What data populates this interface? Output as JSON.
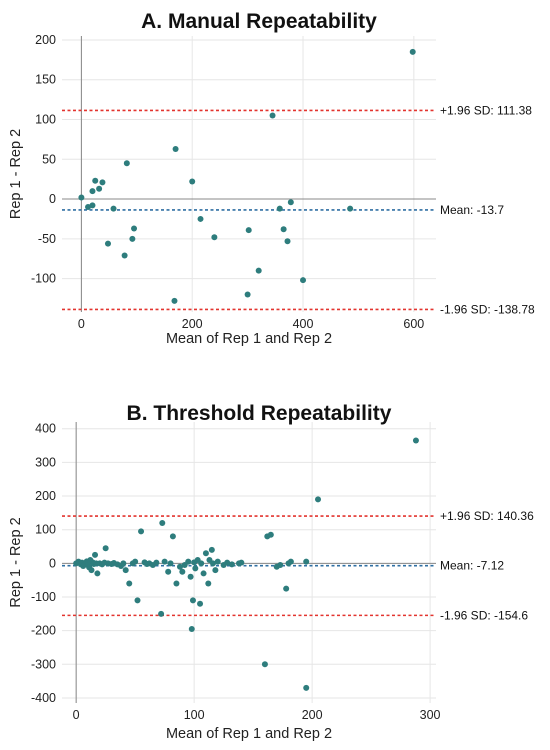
{
  "chart_data": [
    {
      "type": "scatter",
      "title": "A. Manual Repeatability",
      "xlabel": "Mean of Rep 1 and Rep 2",
      "ylabel": "Rep 1 - Rep 2",
      "xlim": [
        -35,
        640
      ],
      "ylim": [
        -142,
        205
      ],
      "xticks": [
        0,
        200,
        400,
        600
      ],
      "yticks": [
        -100,
        -50,
        0,
        50,
        100,
        150,
        200
      ],
      "grid": true,
      "point_color": "#2e7d7d",
      "mean_line": {
        "value": -13.7,
        "label": "Mean: -13.7",
        "color": "#2f6fa3"
      },
      "upper_loa": {
        "value": 111.38,
        "label": "+1.96 SD: 111.38",
        "color": "#e3342f"
      },
      "lower_loa": {
        "value": -138.78,
        "label": "-1.96 SD: -138.78",
        "color": "#e3342f"
      },
      "points": [
        [
          0,
          2
        ],
        [
          12,
          -10
        ],
        [
          20,
          10
        ],
        [
          20,
          -8
        ],
        [
          25,
          23
        ],
        [
          32,
          13
        ],
        [
          38,
          21
        ],
        [
          48,
          -56
        ],
        [
          58,
          -12
        ],
        [
          78,
          -71
        ],
        [
          82,
          45
        ],
        [
          92,
          -50
        ],
        [
          95,
          -37
        ],
        [
          168,
          -128
        ],
        [
          170,
          63
        ],
        [
          200,
          22
        ],
        [
          215,
          -25
        ],
        [
          240,
          -48
        ],
        [
          300,
          -120
        ],
        [
          302,
          -39
        ],
        [
          320,
          -90
        ],
        [
          345,
          105
        ],
        [
          358,
          -12
        ],
        [
          365,
          -38
        ],
        [
          372,
          -53
        ],
        [
          378,
          -4
        ],
        [
          400,
          -102
        ],
        [
          485,
          -12
        ],
        [
          598,
          185
        ]
      ]
    },
    {
      "type": "scatter",
      "title": "B. Threshold Repeatability",
      "xlabel": "Mean of Rep 1 and Rep 2",
      "ylabel": "Rep 1 - Rep 2",
      "xlim": [
        -12,
        305
      ],
      "ylim": [
        -415,
        420
      ],
      "xticks": [
        0,
        100,
        200,
        300
      ],
      "yticks": [
        -400,
        -300,
        -200,
        -100,
        0,
        100,
        200,
        300,
        400
      ],
      "grid": true,
      "point_color": "#2e7d7d",
      "mean_line": {
        "value": -7.12,
        "label": "Mean: -7.12",
        "color": "#2f6fa3"
      },
      "upper_loa": {
        "value": 140.36,
        "label": "+1.96 SD: 140.36",
        "color": "#e3342f"
      },
      "lower_loa": {
        "value": -154.6,
        "label": "-1.96 SD: -154.6",
        "color": "#e3342f"
      },
      "points": [
        [
          0,
          0
        ],
        [
          2,
          5
        ],
        [
          4,
          -3
        ],
        [
          5,
          2
        ],
        [
          6,
          -8
        ],
        [
          8,
          0
        ],
        [
          9,
          6
        ],
        [
          10,
          -5
        ],
        [
          11,
          -12
        ],
        [
          12,
          10
        ],
        [
          13,
          -20
        ],
        [
          14,
          3
        ],
        [
          15,
          -2
        ],
        [
          16,
          25
        ],
        [
          17,
          0
        ],
        [
          18,
          -30
        ],
        [
          20,
          0
        ],
        [
          22,
          -3
        ],
        [
          24,
          2
        ],
        [
          25,
          45
        ],
        [
          27,
          0
        ],
        [
          30,
          -2
        ],
        [
          32,
          1
        ],
        [
          35,
          -3
        ],
        [
          38,
          -8
        ],
        [
          40,
          0
        ],
        [
          42,
          -20
        ],
        [
          45,
          -60
        ],
        [
          48,
          0
        ],
        [
          50,
          5
        ],
        [
          52,
          -110
        ],
        [
          55,
          95
        ],
        [
          58,
          3
        ],
        [
          60,
          -2
        ],
        [
          62,
          0
        ],
        [
          65,
          -5
        ],
        [
          68,
          2
        ],
        [
          72,
          -150
        ],
        [
          73,
          120
        ],
        [
          75,
          5
        ],
        [
          78,
          -25
        ],
        [
          80,
          0
        ],
        [
          82,
          80
        ],
        [
          85,
          -60
        ],
        [
          88,
          -10
        ],
        [
          90,
          -25
        ],
        [
          92,
          -5
        ],
        [
          95,
          5
        ],
        [
          97,
          -40
        ],
        [
          98,
          -195
        ],
        [
          99,
          -110
        ],
        [
          100,
          3
        ],
        [
          101,
          -15
        ],
        [
          103,
          10
        ],
        [
          105,
          -120
        ],
        [
          106,
          0
        ],
        [
          108,
          -30
        ],
        [
          110,
          30
        ],
        [
          112,
          -60
        ],
        [
          113,
          10
        ],
        [
          115,
          40
        ],
        [
          116,
          0
        ],
        [
          118,
          -20
        ],
        [
          120,
          5
        ],
        [
          125,
          -5
        ],
        [
          128,
          2
        ],
        [
          132,
          -3
        ],
        [
          138,
          0
        ],
        [
          140,
          2
        ],
        [
          160,
          -300
        ],
        [
          162,
          80
        ],
        [
          165,
          85
        ],
        [
          170,
          -10
        ],
        [
          173,
          -5
        ],
        [
          178,
          -75
        ],
        [
          180,
          0
        ],
        [
          182,
          5
        ],
        [
          195,
          5
        ],
        [
          205,
          190
        ],
        [
          288,
          365
        ],
        [
          195,
          -370
        ]
      ]
    }
  ]
}
